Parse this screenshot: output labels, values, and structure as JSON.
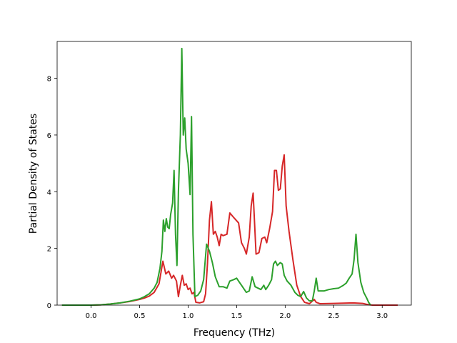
{
  "chart_data": {
    "type": "line",
    "title": "",
    "xlabel": "Frequency (THz)",
    "ylabel": "Partial Density of States",
    "xlim": [
      -0.35,
      3.3
    ],
    "ylim": [
      0,
      9.3
    ],
    "xticks": [
      0.0,
      0.5,
      1.0,
      1.5,
      2.0,
      2.5,
      3.0
    ],
    "xtick_labels": [
      "0.0",
      "0.5",
      "1.0",
      "1.5",
      "2.0",
      "2.5",
      "3.0"
    ],
    "yticks": [
      0,
      2,
      4,
      6,
      8
    ],
    "ytick_labels": [
      "0",
      "2",
      "4",
      "6",
      "8"
    ],
    "grid": false,
    "series": [
      {
        "color": "#d62728",
        "points": [
          [
            -0.3,
            0.0
          ],
          [
            0.0,
            0.0
          ],
          [
            0.1,
            0.01
          ],
          [
            0.2,
            0.04
          ],
          [
            0.3,
            0.08
          ],
          [
            0.4,
            0.13
          ],
          [
            0.5,
            0.2
          ],
          [
            0.55,
            0.25
          ],
          [
            0.6,
            0.32
          ],
          [
            0.65,
            0.45
          ],
          [
            0.7,
            0.75
          ],
          [
            0.74,
            1.55
          ],
          [
            0.77,
            1.1
          ],
          [
            0.8,
            1.2
          ],
          [
            0.83,
            0.95
          ],
          [
            0.85,
            1.05
          ],
          [
            0.88,
            0.85
          ],
          [
            0.9,
            0.3
          ],
          [
            0.92,
            0.7
          ],
          [
            0.94,
            1.05
          ],
          [
            0.96,
            0.7
          ],
          [
            0.98,
            0.75
          ],
          [
            1.0,
            0.55
          ],
          [
            1.02,
            0.6
          ],
          [
            1.04,
            0.4
          ],
          [
            1.06,
            0.45
          ],
          [
            1.08,
            0.1
          ],
          [
            1.12,
            0.08
          ],
          [
            1.16,
            0.12
          ],
          [
            1.18,
            0.4
          ],
          [
            1.2,
            1.5
          ],
          [
            1.22,
            3.0
          ],
          [
            1.24,
            3.65
          ],
          [
            1.26,
            2.5
          ],
          [
            1.28,
            2.6
          ],
          [
            1.3,
            2.4
          ],
          [
            1.32,
            2.1
          ],
          [
            1.34,
            2.5
          ],
          [
            1.36,
            2.45
          ],
          [
            1.4,
            2.5
          ],
          [
            1.43,
            3.25
          ],
          [
            1.48,
            3.05
          ],
          [
            1.52,
            2.9
          ],
          [
            1.55,
            2.2
          ],
          [
            1.58,
            2.0
          ],
          [
            1.6,
            1.8
          ],
          [
            1.63,
            2.4
          ],
          [
            1.65,
            3.5
          ],
          [
            1.67,
            3.95
          ],
          [
            1.7,
            1.8
          ],
          [
            1.73,
            1.85
          ],
          [
            1.76,
            2.35
          ],
          [
            1.79,
            2.4
          ],
          [
            1.81,
            2.2
          ],
          [
            1.84,
            2.7
          ],
          [
            1.87,
            3.3
          ],
          [
            1.89,
            4.75
          ],
          [
            1.91,
            4.75
          ],
          [
            1.93,
            4.05
          ],
          [
            1.95,
            4.1
          ],
          [
            1.97,
            4.9
          ],
          [
            1.99,
            5.3
          ],
          [
            2.01,
            3.5
          ],
          [
            2.04,
            2.6
          ],
          [
            2.08,
            1.6
          ],
          [
            2.12,
            0.7
          ],
          [
            2.16,
            0.3
          ],
          [
            2.2,
            0.1
          ],
          [
            2.25,
            0.05
          ],
          [
            2.3,
            0.2
          ],
          [
            2.32,
            0.1
          ],
          [
            2.36,
            0.05
          ],
          [
            2.5,
            0.06
          ],
          [
            2.7,
            0.08
          ],
          [
            2.8,
            0.06
          ],
          [
            2.85,
            0.02
          ],
          [
            2.9,
            0.0
          ],
          [
            3.16,
            0.0
          ]
        ]
      },
      {
        "color": "#2ca02c",
        "points": [
          [
            -0.3,
            0.0
          ],
          [
            0.0,
            0.0
          ],
          [
            0.1,
            0.01
          ],
          [
            0.2,
            0.04
          ],
          [
            0.3,
            0.08
          ],
          [
            0.4,
            0.14
          ],
          [
            0.5,
            0.22
          ],
          [
            0.55,
            0.3
          ],
          [
            0.6,
            0.4
          ],
          [
            0.65,
            0.6
          ],
          [
            0.68,
            0.8
          ],
          [
            0.71,
            1.3
          ],
          [
            0.73,
            1.9
          ],
          [
            0.745,
            3.0
          ],
          [
            0.76,
            2.6
          ],
          [
            0.775,
            3.05
          ],
          [
            0.79,
            2.75
          ],
          [
            0.805,
            2.7
          ],
          [
            0.82,
            3.2
          ],
          [
            0.84,
            3.6
          ],
          [
            0.855,
            4.75
          ],
          [
            0.87,
            2.5
          ],
          [
            0.885,
            1.4
          ],
          [
            0.9,
            4.0
          ],
          [
            0.92,
            6.0
          ],
          [
            0.935,
            9.05
          ],
          [
            0.95,
            6.0
          ],
          [
            0.965,
            6.6
          ],
          [
            0.98,
            5.5
          ],
          [
            1.0,
            5.0
          ],
          [
            1.02,
            3.9
          ],
          [
            1.035,
            6.65
          ],
          [
            1.05,
            2.5
          ],
          [
            1.07,
            0.3
          ],
          [
            1.1,
            0.35
          ],
          [
            1.13,
            0.5
          ],
          [
            1.16,
            0.9
          ],
          [
            1.19,
            2.15
          ],
          [
            1.22,
            1.9
          ],
          [
            1.25,
            1.5
          ],
          [
            1.28,
            1.0
          ],
          [
            1.32,
            0.65
          ],
          [
            1.36,
            0.65
          ],
          [
            1.4,
            0.6
          ],
          [
            1.43,
            0.85
          ],
          [
            1.47,
            0.9
          ],
          [
            1.5,
            0.95
          ],
          [
            1.53,
            0.8
          ],
          [
            1.56,
            0.65
          ],
          [
            1.6,
            0.45
          ],
          [
            1.63,
            0.5
          ],
          [
            1.66,
            1.0
          ],
          [
            1.69,
            0.65
          ],
          [
            1.72,
            0.6
          ],
          [
            1.75,
            0.55
          ],
          [
            1.78,
            0.7
          ],
          [
            1.8,
            0.55
          ],
          [
            1.83,
            0.7
          ],
          [
            1.86,
            0.9
          ],
          [
            1.88,
            1.45
          ],
          [
            1.9,
            1.55
          ],
          [
            1.92,
            1.4
          ],
          [
            1.95,
            1.5
          ],
          [
            1.97,
            1.45
          ],
          [
            1.99,
            1.05
          ],
          [
            2.02,
            0.85
          ],
          [
            2.06,
            0.7
          ],
          [
            2.1,
            0.45
          ],
          [
            2.13,
            0.35
          ],
          [
            2.16,
            0.3
          ],
          [
            2.19,
            0.48
          ],
          [
            2.22,
            0.25
          ],
          [
            2.25,
            0.15
          ],
          [
            2.28,
            0.15
          ],
          [
            2.3,
            0.5
          ],
          [
            2.32,
            0.95
          ],
          [
            2.34,
            0.5
          ],
          [
            2.4,
            0.5
          ],
          [
            2.45,
            0.55
          ],
          [
            2.5,
            0.58
          ],
          [
            2.55,
            0.6
          ],
          [
            2.6,
            0.7
          ],
          [
            2.63,
            0.78
          ],
          [
            2.66,
            0.95
          ],
          [
            2.69,
            1.1
          ],
          [
            2.71,
            1.6
          ],
          [
            2.73,
            2.5
          ],
          [
            2.75,
            1.5
          ],
          [
            2.78,
            0.8
          ],
          [
            2.81,
            0.45
          ],
          [
            2.84,
            0.25
          ],
          [
            2.86,
            0.1
          ],
          [
            2.88,
            0.0
          ]
        ]
      }
    ]
  }
}
